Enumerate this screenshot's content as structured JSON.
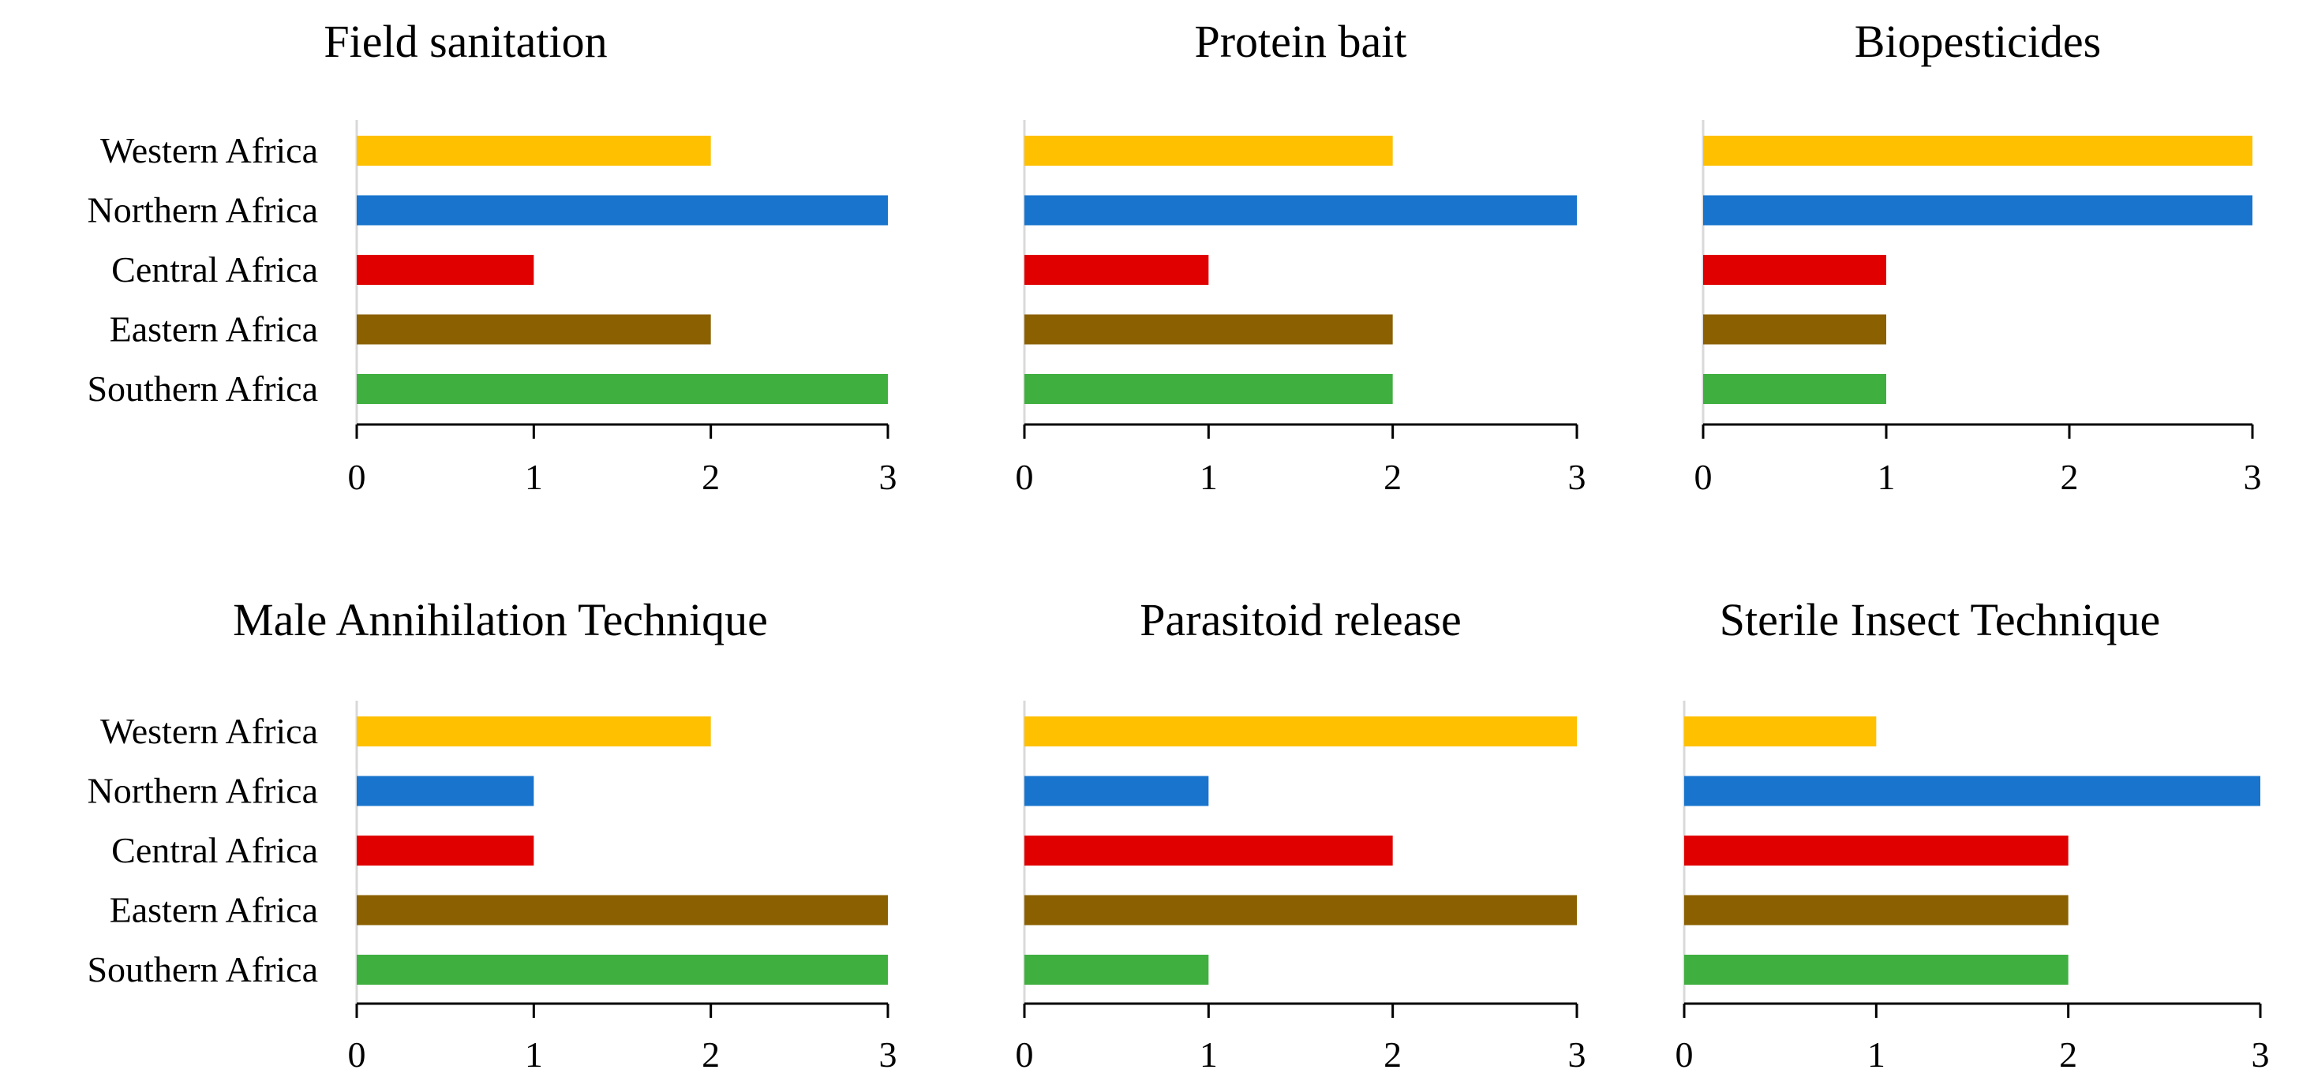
{
  "chart_data": [
    {
      "type": "bar",
      "orientation": "horizontal",
      "title": "Field sanitation",
      "categories": [
        "Western Africa",
        "Northern Africa",
        "Central Africa",
        "Eastern Africa",
        "Southern Africa"
      ],
      "values": [
        2,
        3,
        1,
        2,
        3
      ],
      "xlim": [
        0,
        3
      ],
      "xticks": [
        "0",
        "1",
        "2",
        "3"
      ],
      "grid": false,
      "show_category_labels": true
    },
    {
      "type": "bar",
      "orientation": "horizontal",
      "title": "Protein bait",
      "categories": [
        "Western Africa",
        "Northern Africa",
        "Central Africa",
        "Eastern Africa",
        "Southern Africa"
      ],
      "values": [
        2,
        3,
        1,
        2,
        2
      ],
      "xlim": [
        0,
        3
      ],
      "xticks": [
        "0",
        "1",
        "2",
        "3"
      ],
      "grid": false,
      "show_category_labels": false
    },
    {
      "type": "bar",
      "orientation": "horizontal",
      "title": "Biopesticides",
      "categories": [
        "Western Africa",
        "Northern Africa",
        "Central Africa",
        "Eastern Africa",
        "Southern Africa"
      ],
      "values": [
        3,
        3,
        1,
        1,
        1
      ],
      "xlim": [
        0,
        3
      ],
      "xticks": [
        "0",
        "1",
        "2",
        "3"
      ],
      "grid": false,
      "show_category_labels": false
    },
    {
      "type": "bar",
      "orientation": "horizontal",
      "title": "Male Annihilation  Technique",
      "categories": [
        "Western Africa",
        "Northern Africa",
        "Central Africa",
        "Eastern Africa",
        "Southern Africa"
      ],
      "values": [
        2,
        1,
        1,
        3,
        3
      ],
      "xlim": [
        0,
        3
      ],
      "xticks": [
        "0",
        "1",
        "2",
        "3"
      ],
      "grid": false,
      "show_category_labels": true
    },
    {
      "type": "bar",
      "orientation": "horizontal",
      "title": "Parasitoid  release",
      "categories": [
        "Western Africa",
        "Northern Africa",
        "Central Africa",
        "Eastern Africa",
        "Southern Africa"
      ],
      "values": [
        3,
        1,
        2,
        3,
        1
      ],
      "xlim": [
        0,
        3
      ],
      "xticks": [
        "0",
        "1",
        "2",
        "3"
      ],
      "grid": false,
      "show_category_labels": false
    },
    {
      "type": "bar",
      "orientation": "horizontal",
      "title": "Sterile Insect Technique",
      "categories": [
        "Western Africa",
        "Northern Africa",
        "Central Africa",
        "Eastern Africa",
        "Southern Africa"
      ],
      "values": [
        1,
        3,
        2,
        2,
        2
      ],
      "xlim": [
        0,
        3
      ],
      "xticks": [
        "0",
        "1",
        "2",
        "3"
      ],
      "grid": false,
      "show_category_labels": false
    }
  ],
  "colors": {
    "Western Africa": "#FFC000",
    "Northern Africa": "#1874CD",
    "Central Africa": "#E00000",
    "Eastern Africa": "#8B6000",
    "Southern Africa": "#3FAF3F"
  },
  "axis_color": "#000000",
  "category_axis_color": "#D9D9D9"
}
